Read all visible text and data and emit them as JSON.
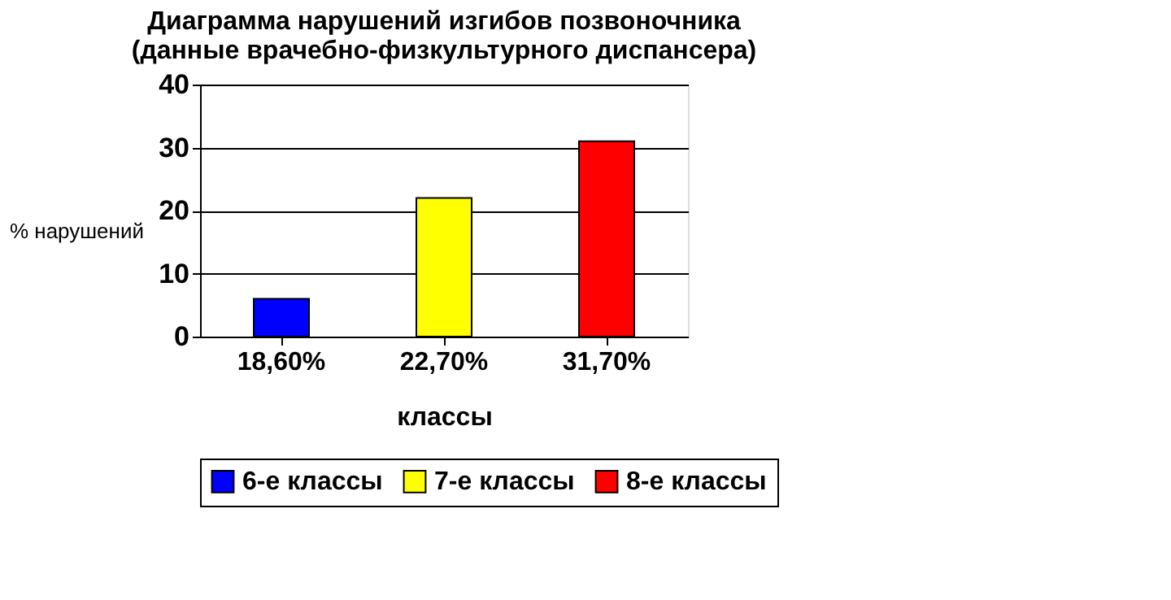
{
  "chart_data": {
    "type": "bar",
    "title": [
      "Диаграмма нарушений изгибов позвоночника",
      "(данные врачебно-физкультурного диспансера)"
    ],
    "xlabel": "классы",
    "ylabel": "% нарушений",
    "categories": [
      "18,60%",
      "22,70%",
      "31,70%"
    ],
    "series": [
      {
        "name": "6-е классы",
        "color": "#0000ff",
        "values": [
          6,
          null,
          null
        ]
      },
      {
        "name": "7-е классы",
        "color": "#ffff00",
        "values": [
          null,
          22,
          null
        ]
      },
      {
        "name": "8-е классы",
        "color": "#ff0000",
        "values": [
          null,
          null,
          31
        ]
      }
    ],
    "ylim": [
      0,
      40
    ],
    "yticks": [
      0,
      10,
      20,
      30,
      40
    ],
    "grid": "y",
    "legend": "bottom"
  }
}
